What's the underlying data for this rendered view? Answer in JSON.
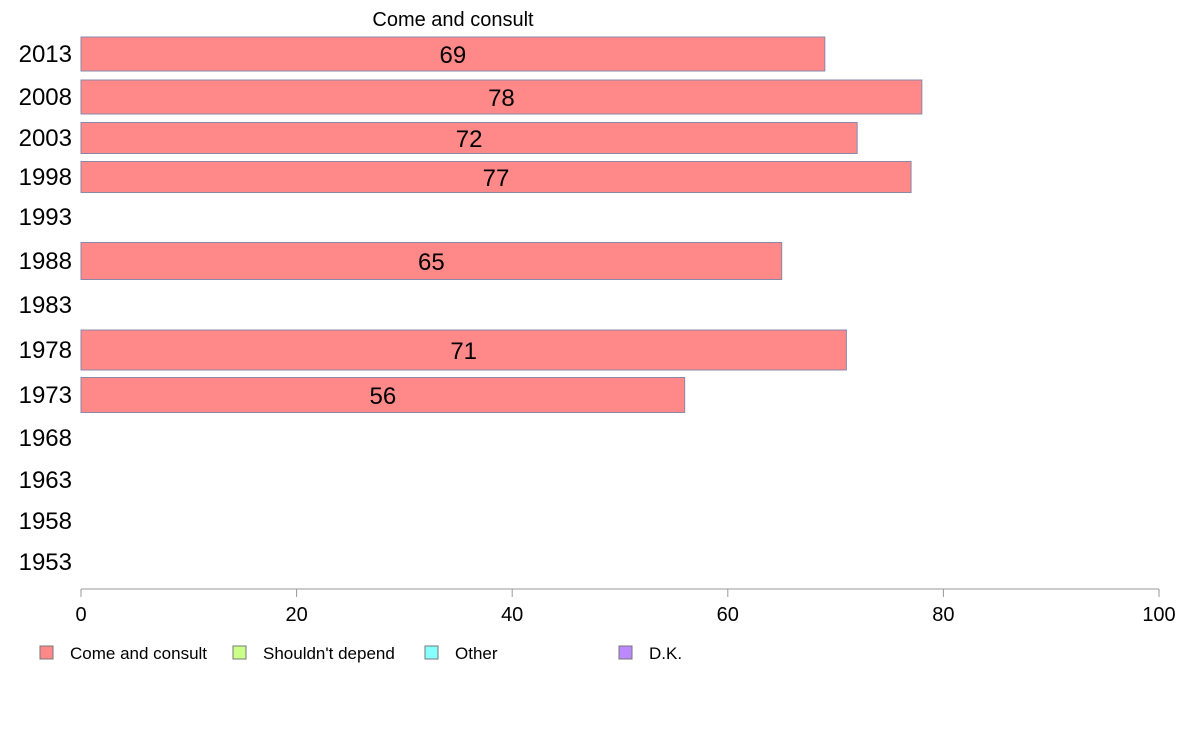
{
  "chart_data": {
    "type": "bar",
    "orientation": "horizontal",
    "title": "Come and consult",
    "categories": [
      "2013",
      "2008",
      "2003",
      "1998",
      "1993",
      "1988",
      "1983",
      "1978",
      "1973",
      "1968",
      "1963",
      "1958",
      "1953"
    ],
    "series": [
      {
        "name": "Come and consult",
        "values": [
          69,
          78,
          72,
          77,
          null,
          65,
          null,
          71,
          56,
          null,
          null,
          null,
          null
        ]
      }
    ],
    "data_labels": [
      "69",
      "78",
      "72",
      "77",
      "",
      "65",
      "",
      "71",
      "56",
      "",
      "",
      "",
      ""
    ],
    "xlim": [
      0,
      100
    ],
    "xticks": [
      0,
      20,
      40,
      60,
      80,
      100
    ],
    "legend": {
      "placement": "bottom",
      "entries": [
        {
          "label": "Come and consult",
          "color": "#ff8888"
        },
        {
          "label": "Shouldn't depend",
          "color": "#ccff88"
        },
        {
          "label": "Other",
          "color": "#88ffff"
        },
        {
          "label": "D.K.",
          "color": "#bb88ff"
        }
      ]
    },
    "colors": {
      "bar_fill": "#ff8888",
      "bar_stroke": "#8888aa",
      "axis": "#999999"
    },
    "grid": false
  }
}
